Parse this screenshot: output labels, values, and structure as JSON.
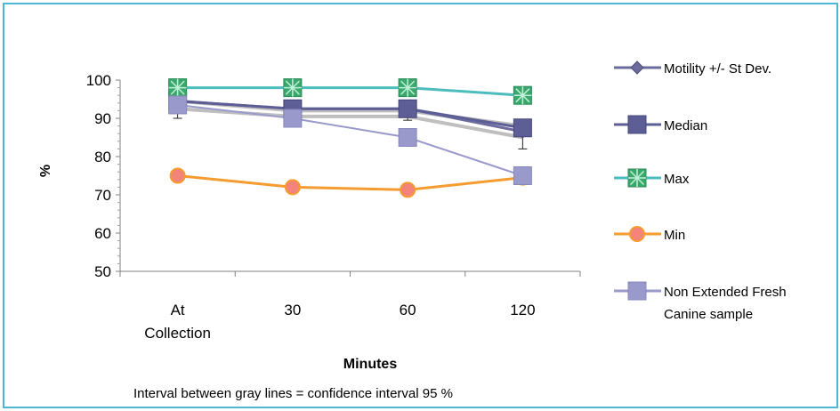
{
  "chart_data": {
    "type": "line",
    "categories": [
      [
        "At",
        "Collection"
      ],
      [
        "30"
      ],
      [
        "60"
      ],
      [
        "120"
      ]
    ],
    "ylabel": "%",
    "xlabel": "Minutes",
    "note": "Interval between gray lines =  confidence interval 95 %",
    "ylim": [
      50,
      100
    ],
    "yticks": [
      50,
      60,
      70,
      80,
      90,
      100
    ],
    "confidence_band": {
      "upper": [
        94.5,
        92,
        92,
        88
      ],
      "lower": [
        92.5,
        90.5,
        90.5,
        85
      ],
      "color": "#bfbfbf"
    },
    "series": [
      {
        "name": "Motility +/- St Dev.",
        "values": [
          94.5,
          92.5,
          92.5,
          86.5
        ],
        "error": [
          4.5,
          1.5,
          3,
          4.5
        ],
        "marker": "diamond",
        "color": "#6b6b9e"
      },
      {
        "name": "Median",
        "values": [
          94.5,
          92.5,
          92.5,
          87.5
        ],
        "marker": "square",
        "color": "#5e5e96"
      },
      {
        "name": "Max",
        "values": [
          98,
          98,
          98,
          96
        ],
        "marker": "star-square",
        "color": "#4cbcbc"
      },
      {
        "name": "Min",
        "values": [
          75,
          72,
          71.3,
          74.5
        ],
        "marker": "circle",
        "color": "#f59b2f"
      },
      {
        "name": "Non Extended Fresh Canine sample",
        "legend_lines": [
          "Non Extended Fresh",
          "Canine sample"
        ],
        "values": [
          93.5,
          90,
          85,
          75
        ],
        "marker": "square-light",
        "color": "#9999cc"
      }
    ]
  }
}
